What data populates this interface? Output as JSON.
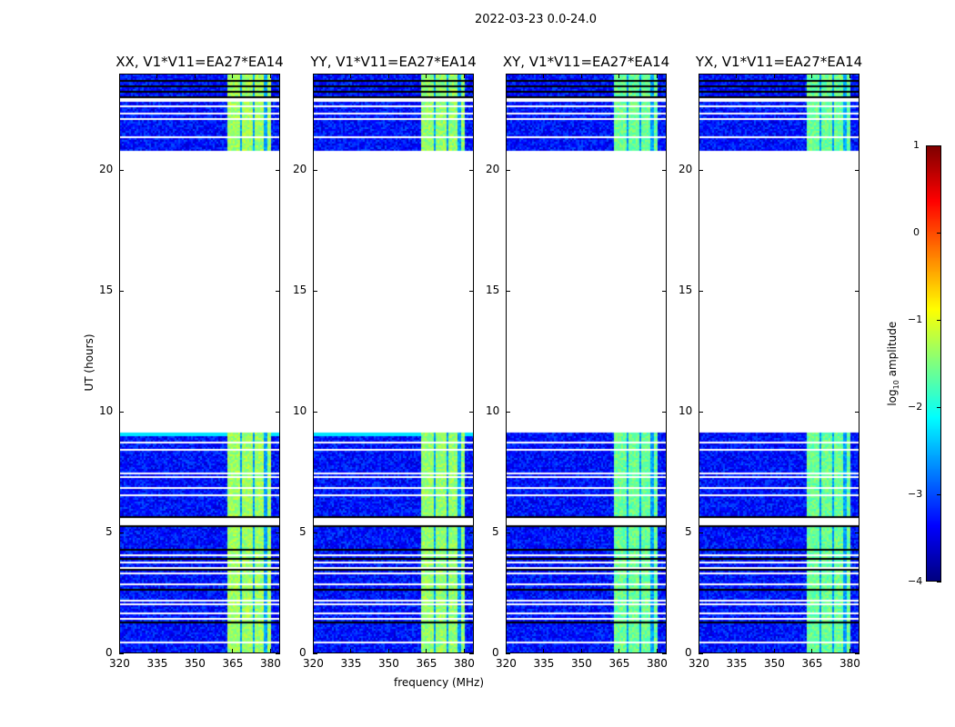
{
  "chart_data": {
    "type": "heatmap",
    "suptitle": "2022-03-23 0.0-24.0",
    "xlabel": "frequency (MHz)",
    "ylabel": "UT (hours)",
    "xlim": [
      320,
      384
    ],
    "ylim": [
      0,
      24
    ],
    "xticks": [
      320,
      335,
      350,
      365,
      380
    ],
    "yticks": [
      0,
      5,
      10,
      15,
      20
    ],
    "panels": [
      {
        "title": "XX, V1*V11=EA27*EA14",
        "band_level": -1.35,
        "cyan_stripe": true
      },
      {
        "title": "YY, V1*V11=EA27*EA14",
        "band_level": -1.4,
        "cyan_stripe": true
      },
      {
        "title": "XY, V1*V11=EA27*EA14",
        "band_level": -1.6,
        "cyan_stripe": false
      },
      {
        "title": "YX, V1*V11=EA27*EA14",
        "band_level": -1.6,
        "cyan_stripe": false
      }
    ],
    "data_segments_hours": [
      [
        0,
        5.3
      ],
      [
        5.65,
        9.2
      ],
      [
        20.85,
        22.9
      ],
      [
        23.05,
        24
      ]
    ],
    "flagged_rows_hours": [
      0.45,
      1.45,
      1.65,
      2.05,
      2.2,
      2.9,
      3.3,
      3.55,
      3.75,
      4.1,
      6.55,
      6.9,
      7.3,
      7.5,
      8.45,
      8.75,
      21.4,
      22.2,
      22.4,
      22.7
    ],
    "dark_rows_hours": [
      1.3,
      1.85,
      2.65,
      3.45,
      3.95,
      4.3,
      5.3,
      5.65,
      8.95,
      20.85,
      22.95,
      23.1,
      23.3,
      23.55,
      23.8
    ],
    "rfi_band_mhz": [
      363,
      380
    ],
    "channel_gaps_mhz": [
      368.3,
      373.3,
      378.3
    ],
    "background_level": -3.3,
    "colorbar": {
      "label": "log10 amplitude",
      "label_main": "log",
      "label_sub": "10",
      "label_rest": " amplitude",
      "range": [
        -4,
        1
      ],
      "ticks": [
        "1",
        "0",
        "−1",
        "−2",
        "−3",
        "−4"
      ],
      "tick_values": [
        1,
        0,
        -1,
        -2,
        -3,
        -4
      ],
      "colormap": "jet"
    }
  }
}
